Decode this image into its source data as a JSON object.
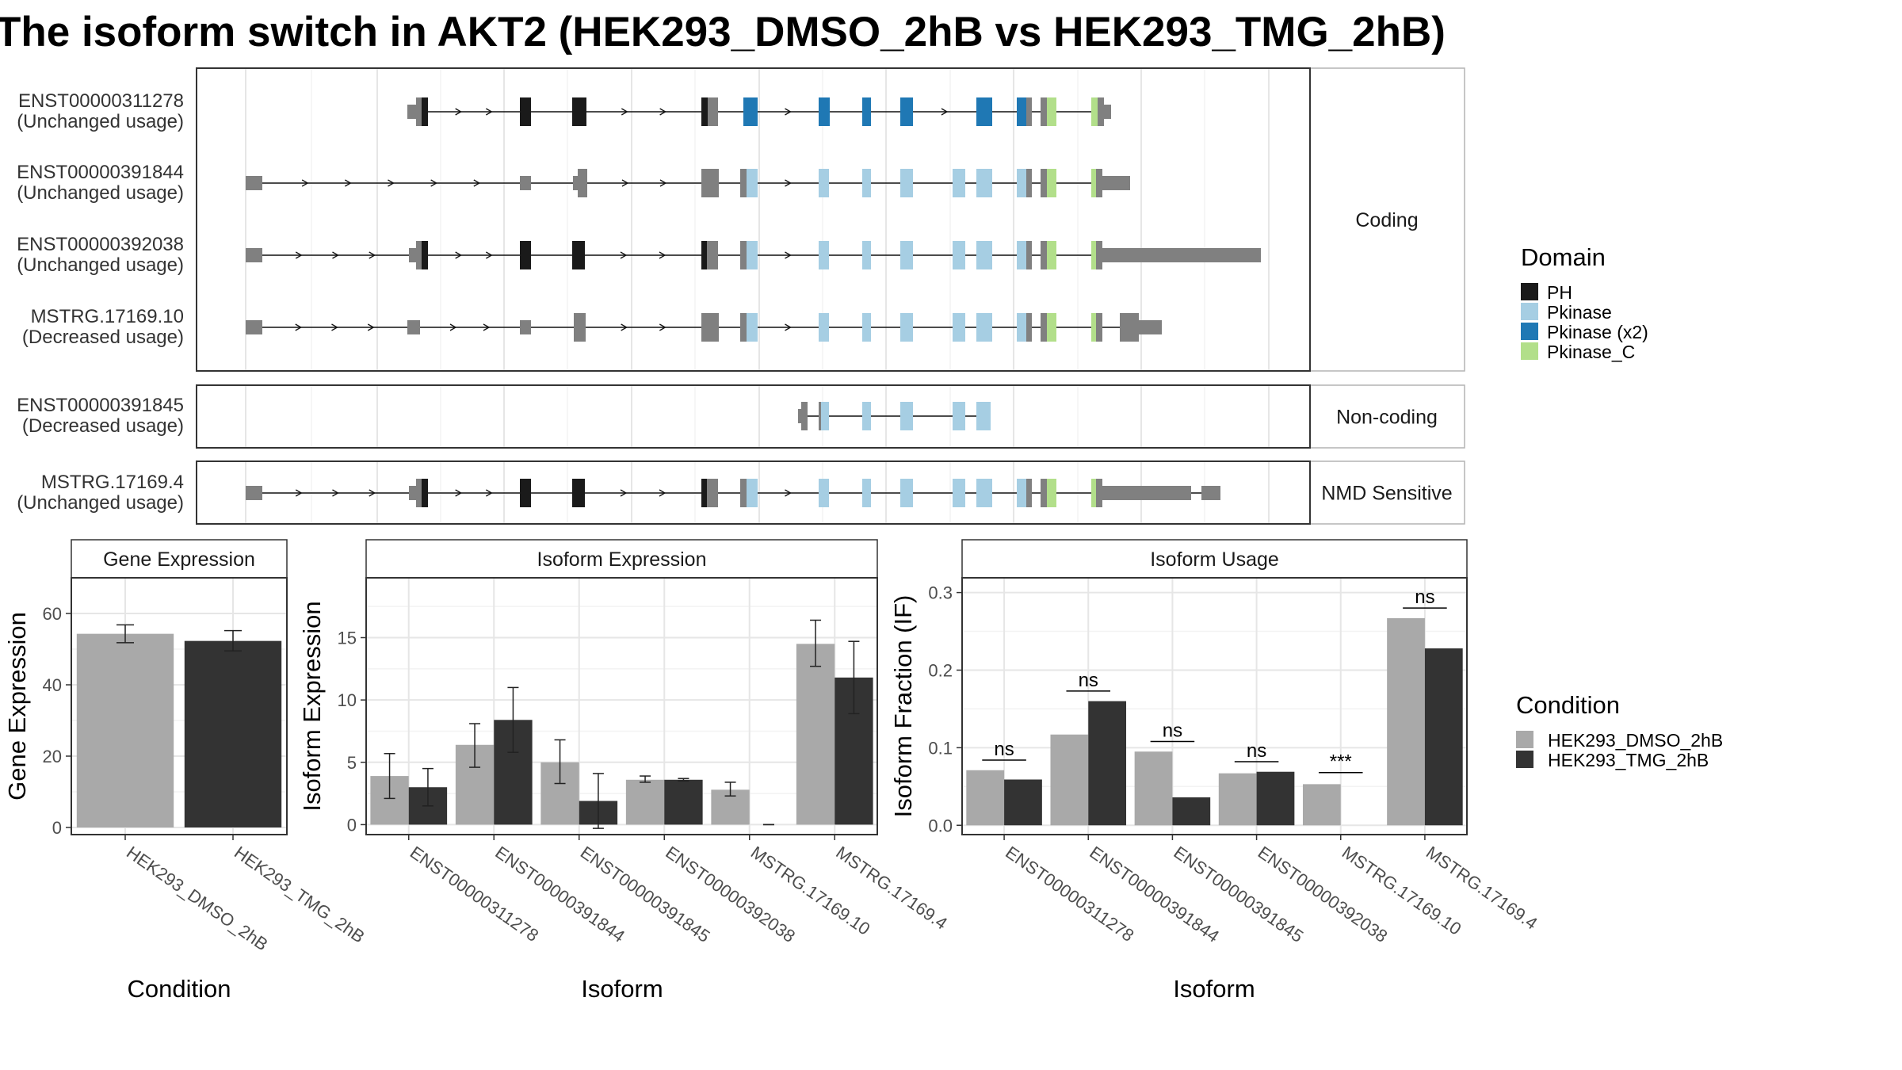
{
  "title": "The isoform switch in AKT2 (HEK293_DMSO_2hB vs HEK293_TMG_2hB)",
  "colors": {
    "PH": "#1a1a1a",
    "Pkinase": "#a6cee3",
    "Pkinase_x2": "#1f78b4",
    "Pkinase_C": "#b2df8a",
    "noDomain": "#808080",
    "DMSO": "#a9a9a9",
    "TMG": "#333333"
  },
  "chart_data": [
    {
      "type": "gene_structure",
      "facets": [
        "Coding",
        "Non-coding",
        "NMD Sensitive"
      ],
      "transcripts": [
        {
          "id": "ENST00000311278",
          "usage": "(Unchanged usage)",
          "facet": "Coding"
        },
        {
          "id": "ENST00000391844",
          "usage": "(Unchanged usage)",
          "facet": "Coding"
        },
        {
          "id": "ENST00000392038",
          "usage": "(Unchanged usage)",
          "facet": "Coding"
        },
        {
          "id": "MSTRG.17169.10",
          "usage": "(Decreased usage)",
          "facet": "Coding"
        },
        {
          "id": "ENST00000391845",
          "usage": "(Decreased usage)",
          "facet": "Non-coding"
        },
        {
          "id": "MSTRG.17169.4",
          "usage": "(Unchanged usage)",
          "facet": "NMD Sensitive"
        }
      ],
      "legend": {
        "title": "Domain",
        "entries": [
          "PH",
          "Pkinase",
          "Pkinase (x2)",
          "Pkinase_C"
        ]
      }
    },
    {
      "type": "bar",
      "strip": "Gene Expression",
      "xlabel": "Condition",
      "ylabel": "Gene Expression",
      "categories": [
        "HEK293_DMSO_2hB",
        "HEK293_TMG_2hB"
      ],
      "values": [
        54.3,
        52.3
      ],
      "errors": [
        [
          51.8,
          56.8
        ],
        [
          49.5,
          55.2
        ]
      ],
      "ylim": [
        -2,
        70
      ],
      "yticks": [
        "0",
        "20",
        "40",
        "60"
      ]
    },
    {
      "type": "bar",
      "strip": "Isoform Expression",
      "xlabel": "Isoform",
      "ylabel": "Isoform Expression",
      "categories": [
        "ENST00000311278",
        "ENST00000391844",
        "ENST00000391845",
        "ENST00000392038",
        "MSTRG.17169.10",
        "MSTRG.17169.4"
      ],
      "series": [
        {
          "name": "HEK293_DMSO_2hB",
          "values": [
            3.9,
            6.4,
            5.0,
            3.6,
            2.8,
            14.5
          ],
          "errors": [
            [
              2.1,
              5.7
            ],
            [
              4.6,
              8.1
            ],
            [
              3.3,
              6.8
            ],
            [
              3.4,
              3.9
            ],
            [
              2.3,
              3.4
            ],
            [
              12.7,
              16.4
            ]
          ]
        },
        {
          "name": "HEK293_TMG_2hB",
          "values": [
            3.0,
            8.4,
            1.9,
            3.6,
            0.0,
            11.8
          ],
          "errors": [
            [
              1.5,
              4.5
            ],
            [
              5.8,
              11.0
            ],
            [
              -0.3,
              4.1
            ],
            [
              3.5,
              3.7
            ],
            [
              0.0,
              0.0
            ],
            [
              8.9,
              14.7
            ]
          ]
        }
      ],
      "ylim": [
        -0.8,
        19.8
      ],
      "yticks": [
        "0",
        "5",
        "10",
        "15"
      ]
    },
    {
      "type": "bar",
      "strip": "Isoform Usage",
      "xlabel": "Isoform",
      "ylabel": "Isoform Fraction (IF)",
      "categories": [
        "ENST00000311278",
        "ENST00000391844",
        "ENST00000391845",
        "ENST00000392038",
        "MSTRG.17169.10",
        "MSTRG.17169.4"
      ],
      "series": [
        {
          "name": "HEK293_DMSO_2hB",
          "values": [
            0.071,
            0.117,
            0.095,
            0.067,
            0.053,
            0.267
          ]
        },
        {
          "name": "HEK293_TMG_2hB",
          "values": [
            0.059,
            0.16,
            0.036,
            0.069,
            0.0,
            0.228
          ]
        }
      ],
      "significance": [
        "ns",
        "ns",
        "ns",
        "ns",
        "***",
        "ns"
      ],
      "sigY": [
        0.084,
        0.173,
        0.108,
        0.082,
        0.068,
        0.28
      ],
      "ylim": [
        -0.012,
        0.319
      ],
      "yticks": [
        "0.0",
        "0.1",
        "0.2",
        "0.3"
      ]
    }
  ],
  "conditionLegend": {
    "title": "Condition",
    "entries": [
      "HEK293_DMSO_2hB",
      "HEK293_TMG_2hB"
    ]
  }
}
